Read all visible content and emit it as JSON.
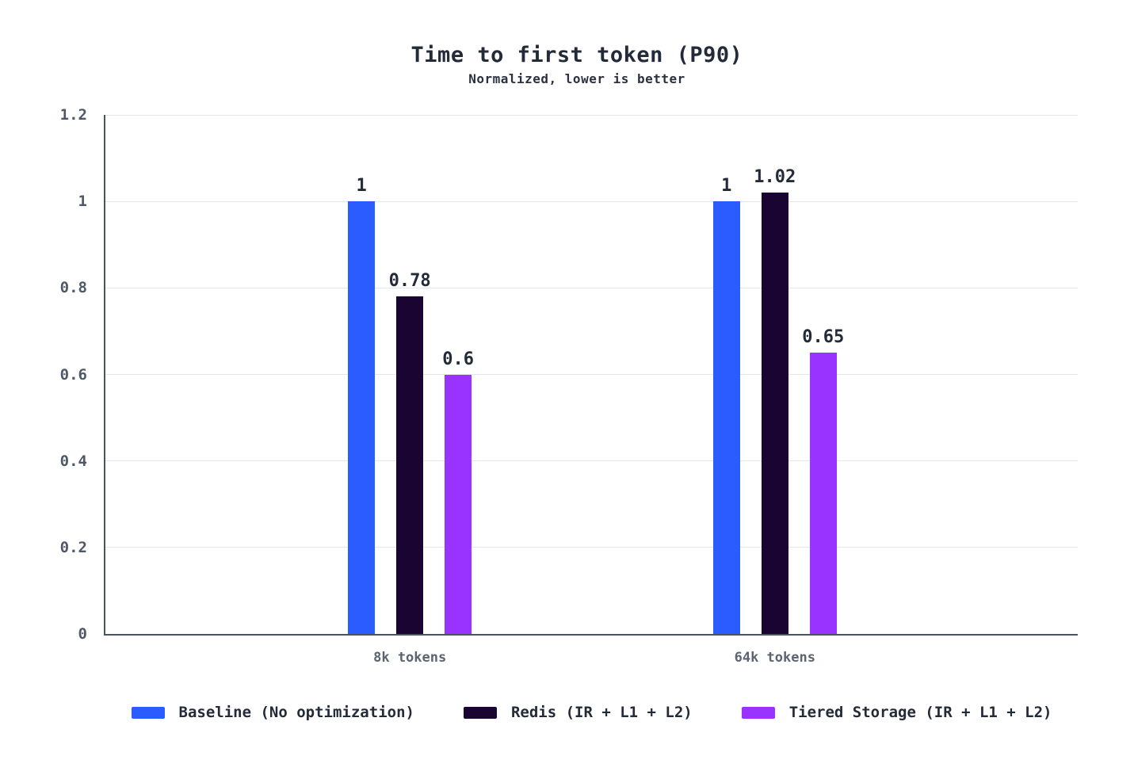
{
  "chart_data": {
    "type": "bar",
    "title": "Time to first token (P90)",
    "subtitle": "Normalized, lower is better",
    "categories": [
      "8k tokens",
      "64k tokens"
    ],
    "series": [
      {
        "name": "Baseline (No optimization)",
        "color": "#2b5cff",
        "values": [
          1,
          1
        ]
      },
      {
        "name": "Redis (IR + L1 + L2)",
        "color": "#1a0532",
        "values": [
          0.78,
          1.02
        ]
      },
      {
        "name": "Tiered Storage (IR + L1 + L2)",
        "color": "#9933ff",
        "values": [
          0.6,
          0.65
        ]
      }
    ],
    "value_labels": [
      [
        "1",
        "0.78",
        "0.6"
      ],
      [
        "1",
        "1.02",
        "0.65"
      ]
    ],
    "y_ticks": [
      0,
      0.2,
      0.4,
      0.6,
      0.8,
      1,
      1.2
    ],
    "y_tick_labels": [
      "0",
      "0.2",
      "0.4",
      "0.6",
      "0.8",
      "1",
      "1.2"
    ],
    "ylim": [
      0,
      1.2
    ],
    "grid": true,
    "legend_position": "bottom",
    "colors": {
      "background": "#ffffff",
      "axis": "#4b5260",
      "gridline": "#e5e5ec",
      "y_tick_text": "#4f5866",
      "category_text": "#5c6472",
      "title_text": "#232b39",
      "value_label_text": "#232b39"
    }
  }
}
